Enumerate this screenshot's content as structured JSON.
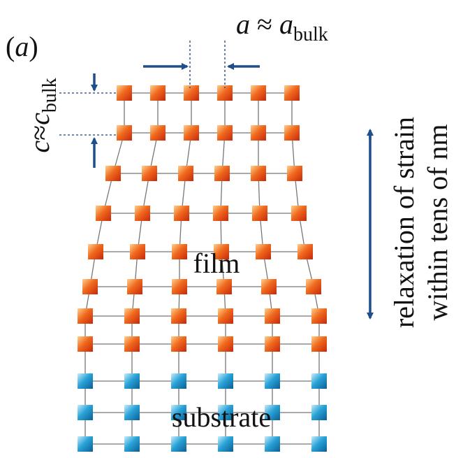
{
  "panel_label": {
    "open": "(",
    "letter": "a",
    "close": ")"
  },
  "in_plane": {
    "symbol": "a",
    "approx": " ≈ ",
    "symbol2": "a",
    "subscript": "bulk"
  },
  "out_of_plane": {
    "symbol": "c",
    "approx": "≈",
    "symbol2": "c",
    "subscript": "bulk"
  },
  "regions": {
    "film": "film",
    "substrate": "substrate"
  },
  "side_note": {
    "line1": "relaxation of strain",
    "line2": "within tens of nm"
  }
}
